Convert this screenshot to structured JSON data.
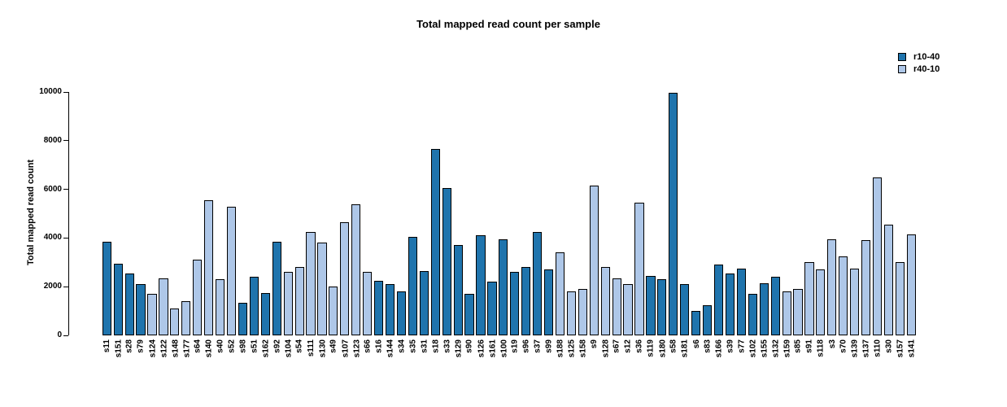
{
  "title": "Total mapped read count per sample",
  "legend": {
    "items": [
      {
        "label": "r10-40",
        "color": "#1f74ad"
      },
      {
        "label": "r40-10",
        "color": "#aec7e8"
      }
    ]
  },
  "colors": {
    "bar_dark": "#1f74ad",
    "bar_light": "#aec7e8",
    "axis": "#000000"
  },
  "chart_data": {
    "type": "bar",
    "title": "Total mapped read count per sample",
    "xlabel": "",
    "ylabel": "Total mapped read count",
    "ylim": [
      0,
      10000
    ],
    "yticks": [
      0,
      2000,
      4000,
      6000,
      8000,
      10000
    ],
    "grid": false,
    "legend_position": "top-right",
    "series": [
      {
        "name": "r10-40",
        "color": "#1f74ad"
      },
      {
        "name": "r40-10",
        "color": "#aec7e8"
      }
    ],
    "categories": [
      "s11",
      "s151",
      "s28",
      "s79",
      "s124",
      "s122",
      "s148",
      "s177",
      "s64",
      "s140",
      "s40",
      "s52",
      "s98",
      "s51",
      "s162",
      "s92",
      "s104",
      "s54",
      "s111",
      "s130",
      "s49",
      "s107",
      "s123",
      "s66",
      "s16",
      "s144",
      "s34",
      "s35",
      "s31",
      "s18",
      "s33",
      "s129",
      "s90",
      "s126",
      "s161",
      "s100",
      "s19",
      "s96",
      "s37",
      "s99",
      "s188",
      "s125",
      "s158",
      "s9",
      "s128",
      "s67",
      "s12",
      "s36",
      "s119",
      "s180",
      "s58",
      "s181",
      "s6",
      "s83",
      "s166",
      "s39",
      "s77",
      "s102",
      "s155",
      "s132",
      "s159",
      "s85",
      "s91",
      "s118",
      "s3",
      "s70",
      "s139",
      "s137",
      "s110",
      "s30",
      "s157",
      "s141"
    ],
    "values": [
      3850,
      2950,
      2550,
      2100,
      1700,
      2350,
      1100,
      1400,
      3100,
      5550,
      2300,
      5300,
      1350,
      2400,
      1750,
      3850,
      2600,
      2800,
      4250,
      3800,
      2000,
      4650,
      5400,
      2600,
      2250,
      2100,
      1800,
      4050,
      2650,
      7650,
      6050,
      3700,
      1700,
      4100,
      2200,
      3950,
      2600,
      2800,
      4250,
      2700,
      3400,
      1800,
      1900,
      6150,
      2800,
      2350,
      2100,
      5450,
      2450,
      2300,
      9950,
      2100,
      1000,
      1250,
      2900,
      2550,
      2750,
      1700,
      2150,
      2400,
      1800,
      1900,
      3000,
      2700,
      3950,
      3250,
      2750,
      3900,
      6500,
      4550,
      3000,
      4150
    ],
    "groups": [
      "r10-40",
      "r10-40",
      "r10-40",
      "r10-40",
      "r40-10",
      "r40-10",
      "r40-10",
      "r40-10",
      "r40-10",
      "r40-10",
      "r40-10",
      "r40-10",
      "r10-40",
      "r10-40",
      "r10-40",
      "r10-40",
      "r40-10",
      "r40-10",
      "r40-10",
      "r40-10",
      "r40-10",
      "r40-10",
      "r40-10",
      "r40-10",
      "r10-40",
      "r10-40",
      "r10-40",
      "r10-40",
      "r10-40",
      "r10-40",
      "r10-40",
      "r10-40",
      "r10-40",
      "r10-40",
      "r10-40",
      "r10-40",
      "r10-40",
      "r10-40",
      "r10-40",
      "r10-40",
      "r40-10",
      "r40-10",
      "r40-10",
      "r40-10",
      "r40-10",
      "r40-10",
      "r40-10",
      "r40-10",
      "r10-40",
      "r10-40",
      "r10-40",
      "r10-40",
      "r10-40",
      "r10-40",
      "r10-40",
      "r10-40",
      "r10-40",
      "r10-40",
      "r10-40",
      "r10-40",
      "r40-10",
      "r40-10",
      "r40-10",
      "r40-10",
      "r40-10",
      "r40-10",
      "r40-10",
      "r40-10",
      "r40-10",
      "r40-10",
      "r40-10",
      "r40-10"
    ]
  }
}
